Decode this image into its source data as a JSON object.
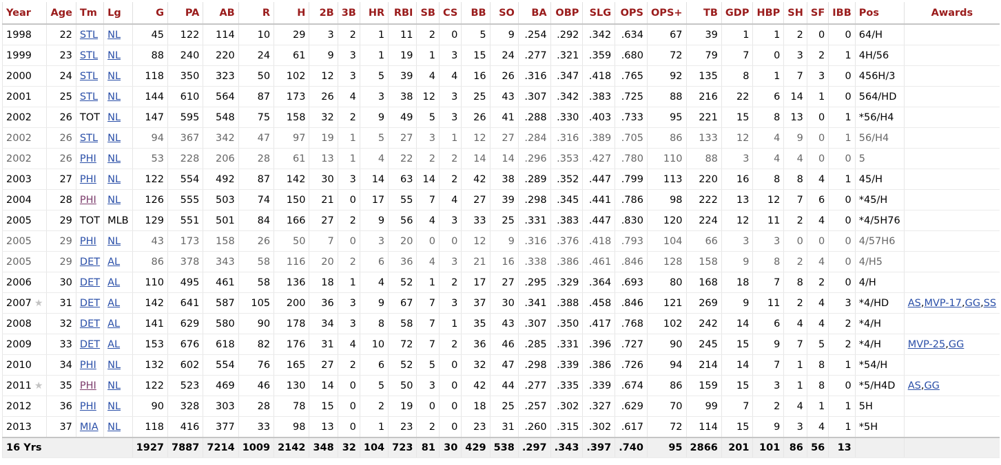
{
  "table": {
    "headers": [
      "Year",
      "Age",
      "Tm",
      "Lg",
      "G",
      "PA",
      "AB",
      "R",
      "H",
      "2B",
      "3B",
      "HR",
      "RBI",
      "SB",
      "CS",
      "BB",
      "SO",
      "BA",
      "OBP",
      "SLG",
      "OPS",
      "OPS+",
      "TB",
      "GDP",
      "HBP",
      "SH",
      "SF",
      "IBB",
      "Pos",
      "Awards"
    ],
    "rows": [
      {
        "year": "1998",
        "star": false,
        "partial": false,
        "age": "22",
        "tm": "STL",
        "tm_link": true,
        "tm_visited": false,
        "lg": "NL",
        "lg_link": true,
        "stats": [
          "45",
          "122",
          "114",
          "10",
          "29",
          "3",
          "2",
          "1",
          "11",
          "2",
          "0",
          "5",
          "9",
          ".254",
          ".292",
          ".342",
          ".634",
          "67",
          "39",
          "1",
          "1",
          "2",
          "0",
          "0"
        ],
        "pos": "64/H",
        "awards": []
      },
      {
        "year": "1999",
        "star": false,
        "partial": false,
        "age": "23",
        "tm": "STL",
        "tm_link": true,
        "tm_visited": false,
        "lg": "NL",
        "lg_link": true,
        "stats": [
          "88",
          "240",
          "220",
          "24",
          "61",
          "9",
          "3",
          "1",
          "19",
          "1",
          "3",
          "15",
          "24",
          ".277",
          ".321",
          ".359",
          ".680",
          "72",
          "79",
          "7",
          "0",
          "3",
          "2",
          "1"
        ],
        "pos": "4H/56",
        "awards": []
      },
      {
        "year": "2000",
        "star": false,
        "partial": false,
        "age": "24",
        "tm": "STL",
        "tm_link": true,
        "tm_visited": false,
        "lg": "NL",
        "lg_link": true,
        "stats": [
          "118",
          "350",
          "323",
          "50",
          "102",
          "12",
          "3",
          "5",
          "39",
          "4",
          "4",
          "16",
          "26",
          ".316",
          ".347",
          ".418",
          ".765",
          "92",
          "135",
          "8",
          "1",
          "7",
          "3",
          "0"
        ],
        "pos": "456H/3",
        "awards": []
      },
      {
        "year": "2001",
        "star": false,
        "partial": false,
        "age": "25",
        "tm": "STL",
        "tm_link": true,
        "tm_visited": false,
        "lg": "NL",
        "lg_link": true,
        "stats": [
          "144",
          "610",
          "564",
          "87",
          "173",
          "26",
          "4",
          "3",
          "38",
          "12",
          "3",
          "25",
          "43",
          ".307",
          ".342",
          ".383",
          ".725",
          "88",
          "216",
          "22",
          "6",
          "14",
          "1",
          "0"
        ],
        "pos": "564/HD",
        "awards": []
      },
      {
        "year": "2002",
        "star": false,
        "partial": false,
        "age": "26",
        "tm": "TOT",
        "tm_link": false,
        "tm_visited": false,
        "lg": "NL",
        "lg_link": true,
        "stats": [
          "147",
          "595",
          "548",
          "75",
          "158",
          "32",
          "2",
          "9",
          "49",
          "5",
          "3",
          "26",
          "41",
          ".288",
          ".330",
          ".403",
          ".733",
          "95",
          "221",
          "15",
          "8",
          "13",
          "0",
          "1"
        ],
        "pos": "*56/H4",
        "awards": []
      },
      {
        "year": "2002",
        "star": false,
        "partial": true,
        "age": "26",
        "tm": "STL",
        "tm_link": true,
        "tm_visited": false,
        "lg": "NL",
        "lg_link": true,
        "stats": [
          "94",
          "367",
          "342",
          "47",
          "97",
          "19",
          "1",
          "5",
          "27",
          "3",
          "1",
          "12",
          "27",
          ".284",
          ".316",
          ".389",
          ".705",
          "86",
          "133",
          "12",
          "4",
          "9",
          "0",
          "1"
        ],
        "pos": "56/H4",
        "awards": []
      },
      {
        "year": "2002",
        "star": false,
        "partial": true,
        "age": "26",
        "tm": "PHI",
        "tm_link": true,
        "tm_visited": false,
        "lg": "NL",
        "lg_link": true,
        "stats": [
          "53",
          "228",
          "206",
          "28",
          "61",
          "13",
          "1",
          "4",
          "22",
          "2",
          "2",
          "14",
          "14",
          ".296",
          ".353",
          ".427",
          ".780",
          "110",
          "88",
          "3",
          "4",
          "4",
          "0",
          "0"
        ],
        "pos": "5",
        "awards": []
      },
      {
        "year": "2003",
        "star": false,
        "partial": false,
        "age": "27",
        "tm": "PHI",
        "tm_link": true,
        "tm_visited": false,
        "lg": "NL",
        "lg_link": true,
        "stats": [
          "122",
          "554",
          "492",
          "87",
          "142",
          "30",
          "3",
          "14",
          "63",
          "14",
          "2",
          "42",
          "38",
          ".289",
          ".352",
          ".447",
          ".799",
          "113",
          "220",
          "16",
          "8",
          "8",
          "4",
          "1"
        ],
        "pos": "45/H",
        "awards": []
      },
      {
        "year": "2004",
        "star": false,
        "partial": false,
        "age": "28",
        "tm": "PHI",
        "tm_link": true,
        "tm_visited": true,
        "lg": "NL",
        "lg_link": true,
        "stats": [
          "126",
          "555",
          "503",
          "74",
          "150",
          "21",
          "0",
          "17",
          "55",
          "7",
          "4",
          "27",
          "39",
          ".298",
          ".345",
          ".441",
          ".786",
          "98",
          "222",
          "13",
          "12",
          "7",
          "6",
          "0"
        ],
        "pos": "*45/H",
        "awards": []
      },
      {
        "year": "2005",
        "star": false,
        "partial": false,
        "age": "29",
        "tm": "TOT",
        "tm_link": false,
        "tm_visited": false,
        "lg": "MLB",
        "lg_link": false,
        "stats": [
          "129",
          "551",
          "501",
          "84",
          "166",
          "27",
          "2",
          "9",
          "56",
          "4",
          "3",
          "33",
          "25",
          ".331",
          ".383",
          ".447",
          ".830",
          "120",
          "224",
          "12",
          "11",
          "2",
          "4",
          "0"
        ],
        "pos": "*4/5H76",
        "awards": []
      },
      {
        "year": "2005",
        "star": false,
        "partial": true,
        "age": "29",
        "tm": "PHI",
        "tm_link": true,
        "tm_visited": false,
        "lg": "NL",
        "lg_link": true,
        "stats": [
          "43",
          "173",
          "158",
          "26",
          "50",
          "7",
          "0",
          "3",
          "20",
          "0",
          "0",
          "12",
          "9",
          ".316",
          ".376",
          ".418",
          ".793",
          "104",
          "66",
          "3",
          "3",
          "0",
          "0",
          "0"
        ],
        "pos": "4/57H6",
        "awards": []
      },
      {
        "year": "2005",
        "star": false,
        "partial": true,
        "age": "29",
        "tm": "DET",
        "tm_link": true,
        "tm_visited": false,
        "lg": "AL",
        "lg_link": true,
        "stats": [
          "86",
          "378",
          "343",
          "58",
          "116",
          "20",
          "2",
          "6",
          "36",
          "4",
          "3",
          "21",
          "16",
          ".338",
          ".386",
          ".461",
          ".846",
          "128",
          "158",
          "9",
          "8",
          "2",
          "4",
          "0"
        ],
        "pos": "4/H5",
        "awards": []
      },
      {
        "year": "2006",
        "star": false,
        "partial": false,
        "age": "30",
        "tm": "DET",
        "tm_link": true,
        "tm_visited": false,
        "lg": "AL",
        "lg_link": true,
        "stats": [
          "110",
          "495",
          "461",
          "58",
          "136",
          "18",
          "1",
          "4",
          "52",
          "1",
          "2",
          "17",
          "27",
          ".295",
          ".329",
          ".364",
          ".693",
          "80",
          "168",
          "18",
          "7",
          "8",
          "2",
          "0"
        ],
        "pos": "4/H",
        "awards": []
      },
      {
        "year": "2007",
        "star": true,
        "partial": false,
        "age": "31",
        "tm": "DET",
        "tm_link": true,
        "tm_visited": false,
        "lg": "AL",
        "lg_link": true,
        "stats": [
          "142",
          "641",
          "587",
          "105",
          "200",
          "36",
          "3",
          "9",
          "67",
          "7",
          "3",
          "37",
          "30",
          ".341",
          ".388",
          ".458",
          ".846",
          "121",
          "269",
          "9",
          "11",
          "2",
          "4",
          "3"
        ],
        "pos": "*4/HD",
        "awards": [
          "AS",
          "MVP-17",
          "GG",
          "SS"
        ]
      },
      {
        "year": "2008",
        "star": false,
        "partial": false,
        "age": "32",
        "tm": "DET",
        "tm_link": true,
        "tm_visited": false,
        "lg": "AL",
        "lg_link": true,
        "stats": [
          "141",
          "629",
          "580",
          "90",
          "178",
          "34",
          "3",
          "8",
          "58",
          "7",
          "1",
          "35",
          "43",
          ".307",
          ".350",
          ".417",
          ".768",
          "102",
          "242",
          "14",
          "6",
          "4",
          "4",
          "2"
        ],
        "pos": "*4/H",
        "awards": []
      },
      {
        "year": "2009",
        "star": false,
        "partial": false,
        "age": "33",
        "tm": "DET",
        "tm_link": true,
        "tm_visited": false,
        "lg": "AL",
        "lg_link": true,
        "stats": [
          "153",
          "676",
          "618",
          "82",
          "176",
          "31",
          "4",
          "10",
          "72",
          "7",
          "2",
          "36",
          "46",
          ".285",
          ".331",
          ".396",
          ".727",
          "90",
          "245",
          "15",
          "9",
          "7",
          "5",
          "2"
        ],
        "pos": "*4/H",
        "awards": [
          "MVP-25",
          "GG"
        ]
      },
      {
        "year": "2010",
        "star": false,
        "partial": false,
        "age": "34",
        "tm": "PHI",
        "tm_link": true,
        "tm_visited": false,
        "lg": "NL",
        "lg_link": true,
        "stats": [
          "132",
          "602",
          "554",
          "76",
          "165",
          "27",
          "2",
          "6",
          "52",
          "5",
          "0",
          "32",
          "47",
          ".298",
          ".339",
          ".386",
          ".726",
          "94",
          "214",
          "14",
          "7",
          "1",
          "8",
          "1"
        ],
        "pos": "*54/H",
        "awards": []
      },
      {
        "year": "2011",
        "star": true,
        "partial": false,
        "age": "35",
        "tm": "PHI",
        "tm_link": true,
        "tm_visited": true,
        "lg": "NL",
        "lg_link": true,
        "stats": [
          "122",
          "523",
          "469",
          "46",
          "130",
          "14",
          "0",
          "5",
          "50",
          "3",
          "0",
          "42",
          "44",
          ".277",
          ".335",
          ".339",
          ".674",
          "86",
          "159",
          "15",
          "3",
          "1",
          "8",
          "0"
        ],
        "pos": "*5/H4D",
        "awards": [
          "AS",
          "GG"
        ]
      },
      {
        "year": "2012",
        "star": false,
        "partial": false,
        "age": "36",
        "tm": "PHI",
        "tm_link": true,
        "tm_visited": false,
        "lg": "NL",
        "lg_link": true,
        "stats": [
          "90",
          "328",
          "303",
          "28",
          "78",
          "15",
          "0",
          "2",
          "19",
          "0",
          "0",
          "18",
          "25",
          ".257",
          ".302",
          ".327",
          ".629",
          "70",
          "99",
          "7",
          "2",
          "4",
          "1",
          "1"
        ],
        "pos": "5H",
        "awards": []
      },
      {
        "year": "2013",
        "star": false,
        "partial": false,
        "age": "37",
        "tm": "MIA",
        "tm_link": true,
        "tm_visited": false,
        "lg": "NL",
        "lg_link": true,
        "stats": [
          "118",
          "416",
          "377",
          "33",
          "98",
          "13",
          "0",
          "1",
          "23",
          "2",
          "0",
          "23",
          "31",
          ".260",
          ".315",
          ".302",
          ".617",
          "72",
          "114",
          "15",
          "9",
          "3",
          "4",
          "1"
        ],
        "pos": "*5H",
        "awards": []
      }
    ],
    "footer": {
      "label": "16 Yrs",
      "stats": [
        "1927",
        "7887",
        "7214",
        "1009",
        "2142",
        "348",
        "32",
        "104",
        "723",
        "81",
        "30",
        "429",
        "538",
        ".297",
        ".343",
        ".397",
        ".740",
        "95",
        "2866",
        "201",
        "101",
        "86",
        "56",
        "13"
      ],
      "pos": "",
      "awards": ""
    },
    "star_glyph": "★",
    "award_separator": ","
  }
}
